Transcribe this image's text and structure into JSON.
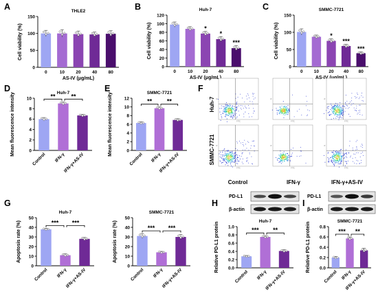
{
  "panels": {
    "A": "A",
    "B": "B",
    "C": "C",
    "D": "D",
    "E": "E",
    "F": "F",
    "G": "G",
    "H": "H",
    "I": "I"
  },
  "blot_labels": {
    "pdl1": "PD-L1",
    "actin": "β-actin"
  },
  "flow": {
    "row_labels": [
      "Huh-7",
      "SMMC-7721"
    ],
    "col_labels": [
      "Control",
      "IFN-γ",
      "IFN-γ+AS-IV"
    ],
    "axis_text": {
      "x": "FITC",
      "y": "PI"
    }
  },
  "chart_data": [
    {
      "id": "A",
      "type": "bar",
      "title": "THLE2",
      "categories": [
        "0",
        "10",
        "20",
        "40",
        "80"
      ],
      "values": [
        100,
        100,
        98,
        97,
        99
      ],
      "errors": [
        9,
        11,
        9,
        7,
        9
      ],
      "ylim": [
        0,
        150
      ],
      "yticks": [
        0,
        50,
        100,
        150
      ],
      "ylabel": "Cell viability (%)",
      "xlabel": "AS-IV (μg/mL)",
      "colors": [
        "#9ea6f3",
        "#a46bd2",
        "#8b45b2",
        "#6f2a96",
        "#4a0e6c"
      ],
      "sig": [
        "",
        "",
        "",
        "",
        ""
      ]
    },
    {
      "id": "B",
      "type": "bar",
      "title": "Huh-7",
      "categories": [
        "0",
        "10",
        "20",
        "40",
        "80"
      ],
      "values": [
        98,
        88,
        77,
        64,
        43
      ],
      "errors": [
        6,
        5,
        5,
        6,
        6
      ],
      "ylim": [
        0,
        120
      ],
      "yticks": [
        0,
        20,
        40,
        60,
        80,
        100,
        120
      ],
      "ylabel": "Cell viability (%)",
      "xlabel": "AS-IV (μg/mL)",
      "colors": [
        "#9ea6f3",
        "#a46bd2",
        "#8b45b2",
        "#6f2a96",
        "#4a0e6c"
      ],
      "sig": [
        "",
        "",
        "*",
        "*",
        "***"
      ]
    },
    {
      "id": "C",
      "type": "bar",
      "title": "SMMC-7721",
      "categories": [
        "0",
        "10",
        "20",
        "40",
        "80"
      ],
      "values": [
        101,
        87,
        75,
        60,
        39
      ],
      "errors": [
        9,
        5,
        6,
        5,
        4
      ],
      "ylim": [
        0,
        150
      ],
      "yticks": [
        0,
        50,
        100,
        150
      ],
      "ylabel": "Cell viability (%)",
      "xlabel": "AS-IV (μg/mL)",
      "colors": [
        "#9ea6f3",
        "#a46bd2",
        "#8b45b2",
        "#6f2a96",
        "#4a0e6c"
      ],
      "sig": [
        "",
        "",
        "*",
        "***",
        "***"
      ]
    },
    {
      "id": "D",
      "type": "bar",
      "title": "Huh-7",
      "categories": [
        "Control",
        "IFN-γ",
        "IFN-γ+AS-IV"
      ],
      "values": [
        6.0,
        9.0,
        6.7
      ],
      "errors": [
        0.3,
        0.3,
        0.2
      ],
      "ylim": [
        0,
        10
      ],
      "yticks": [
        0,
        2,
        4,
        6,
        8,
        10
      ],
      "ylabel": "Mean fluorescence intensity",
      "xlabel": "",
      "colors": [
        "#9ea6f3",
        "#b06fd6",
        "#6f2a96"
      ],
      "brackets": [
        {
          "from": 0,
          "to": 1,
          "label": "**"
        },
        {
          "from": 1,
          "to": 2,
          "label": "**"
        }
      ]
    },
    {
      "id": "E",
      "type": "bar",
      "title": "SMMC-7721",
      "categories": [
        "Control",
        "IFN-γ",
        "IFN-γ+AS-IV"
      ],
      "values": [
        6.3,
        9.7,
        7.0
      ],
      "errors": [
        0.3,
        0.3,
        0.3
      ],
      "ylim": [
        0,
        12
      ],
      "yticks": [
        0,
        2,
        4,
        6,
        8,
        10,
        12
      ],
      "ylabel": "Mean fluorescence intensity",
      "xlabel": "",
      "colors": [
        "#9ea6f3",
        "#b06fd6",
        "#6f2a96"
      ],
      "brackets": [
        {
          "from": 0,
          "to": 1,
          "label": "**"
        },
        {
          "from": 1,
          "to": 2,
          "label": "**"
        }
      ]
    },
    {
      "id": "G1",
      "type": "bar",
      "title": "Huh-7",
      "categories": [
        "Control",
        "IFN-γ",
        "IFN-γ+AS-IV"
      ],
      "values": [
        38,
        11,
        28
      ],
      "errors": [
        1,
        1.5,
        1.5
      ],
      "ylim": [
        0,
        50
      ],
      "yticks": [
        0,
        10,
        20,
        30,
        40,
        50
      ],
      "ylabel": "Apoptosis rate (%)",
      "xlabel": "",
      "colors": [
        "#9ea6f3",
        "#b06fd6",
        "#6f2a96"
      ],
      "brackets": [
        {
          "from": 0,
          "to": 1,
          "label": "***"
        },
        {
          "from": 1,
          "to": 2,
          "label": "***"
        }
      ]
    },
    {
      "id": "G2",
      "type": "bar",
      "title": "SMMC-7721",
      "categories": [
        "Control",
        "IFN-γ",
        "IFN-γ+AS-IV"
      ],
      "values": [
        31,
        14,
        30
      ],
      "errors": [
        2.5,
        1,
        2.5
      ],
      "ylim": [
        0,
        50
      ],
      "yticks": [
        0,
        10,
        20,
        30,
        40,
        50
      ],
      "ylabel": "Apoptosis rate (%)",
      "xlabel": "",
      "colors": [
        "#9ea6f3",
        "#b06fd6",
        "#6f2a96"
      ],
      "brackets": [
        {
          "from": 0,
          "to": 1,
          "label": "***"
        },
        {
          "from": 1,
          "to": 2,
          "label": "***"
        }
      ]
    },
    {
      "id": "H",
      "type": "bar",
      "title": "Huh-7",
      "categories": [
        "Control",
        "IFN-γ",
        "IFN-γ+AS-IV"
      ],
      "values": [
        0.28,
        0.75,
        0.41
      ],
      "errors": [
        0.02,
        0.03,
        0.03
      ],
      "ylim": [
        0,
        1.0
      ],
      "yticks": [
        0,
        0.2,
        0.4,
        0.6,
        0.8,
        1.0
      ],
      "ylabel": "Relative PD-L1 protein",
      "xlabel": "",
      "colors": [
        "#9ea6f3",
        "#b06fd6",
        "#6f2a96"
      ],
      "brackets": [
        {
          "from": 0,
          "to": 1,
          "label": "***"
        },
        {
          "from": 1,
          "to": 2,
          "label": "**"
        }
      ]
    },
    {
      "id": "I",
      "type": "bar",
      "title": "SMMC-7721",
      "categories": [
        "Control",
        "IFN-γ",
        "IFN-γ+AS-IV"
      ],
      "values": [
        0.2,
        0.57,
        0.34
      ],
      "errors": [
        0.02,
        0.03,
        0.04
      ],
      "ylim": [
        0,
        0.8
      ],
      "yticks": [
        0,
        0.2,
        0.4,
        0.6,
        0.8
      ],
      "ylabel": "Relative PD-L1 protein",
      "xlabel": "",
      "colors": [
        "#9ea6f3",
        "#b06fd6",
        "#6f2a96"
      ],
      "brackets": [
        {
          "from": 0,
          "to": 1,
          "label": "***"
        },
        {
          "from": 1,
          "to": 2,
          "label": "**"
        }
      ]
    }
  ]
}
